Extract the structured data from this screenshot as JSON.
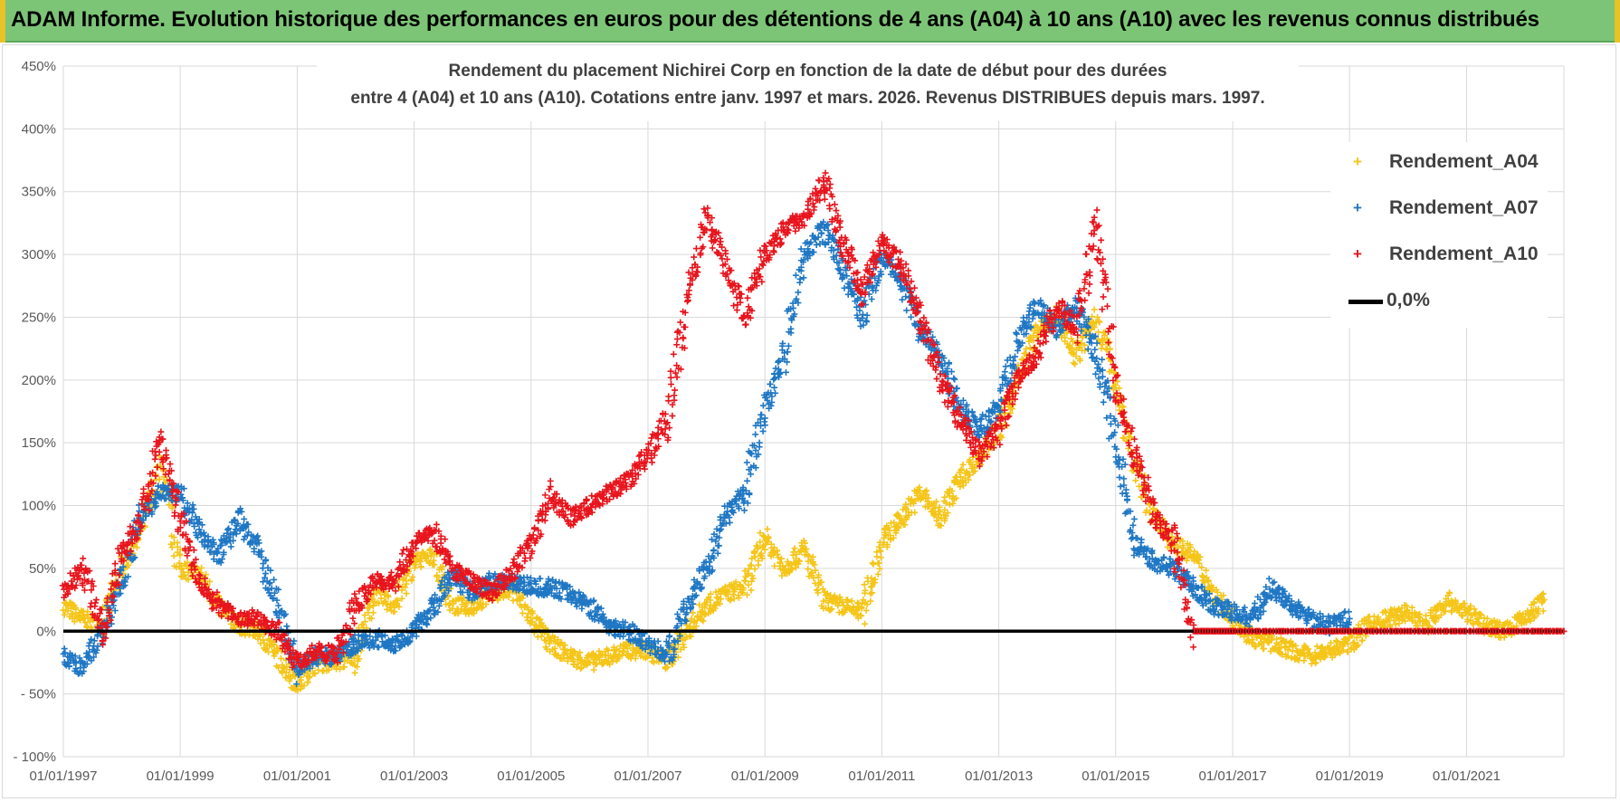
{
  "banner": {
    "title": "ADAM Informe. Evolution historique des performances en euros pour des détentions de 4 ans (A04) à 10 ans (A10) avec les revenus connus distribués"
  },
  "chart_data": {
    "type": "scatter",
    "title_line1": "Rendement du placement Nichirei Corp en fonction de la date de début pour des durées",
    "title_line2": "entre 4 (A04) et 10 ans (A10).  Cotations entre janv. 1997 et mars. 2026. Revenus DISTRIBUES depuis mars. 1997.",
    "xlim": [
      "1997-01-01",
      "2022-09-01"
    ],
    "ylim": [
      -100,
      450
    ],
    "y_ticks": [
      -100,
      -50,
      0,
      50,
      100,
      150,
      200,
      250,
      300,
      350,
      400,
      450
    ],
    "y_tick_labels": [
      "- 100%",
      "- 50%",
      "0%",
      "50%",
      "100%",
      "150%",
      "200%",
      "250%",
      "300%",
      "350%",
      "400%",
      "450%"
    ],
    "x_tick_labels": [
      "01/01/1997",
      "01/01/1999",
      "01/01/2001",
      "01/01/2003",
      "01/01/2005",
      "01/01/2007",
      "01/01/2009",
      "01/01/2011",
      "01/01/2013",
      "01/01/2015",
      "01/01/2017",
      "01/01/2019",
      "01/01/2021"
    ],
    "x_tick_dates": [
      "1997-01-01",
      "1999-01-01",
      "2001-01-01",
      "2003-01-01",
      "2005-01-01",
      "2007-01-01",
      "2009-01-01",
      "2011-01-01",
      "2013-01-01",
      "2015-01-01",
      "2017-01-01",
      "2019-01-01",
      "2021-01-01"
    ],
    "grid": true,
    "legend_position": "right",
    "series": [
      {
        "name": "Rendement_A04",
        "color": "#f5c518",
        "points": [
          [
            "1997-01-01",
            20
          ],
          [
            "1997-05-01",
            10
          ],
          [
            "1997-09-01",
            5
          ],
          [
            "1998-01-01",
            50
          ],
          [
            "1998-05-01",
            80
          ],
          [
            "1998-09-01",
            130
          ],
          [
            "1999-01-01",
            50
          ],
          [
            "1999-05-01",
            45
          ],
          [
            "1999-09-01",
            20
          ],
          [
            "2000-01-01",
            5
          ],
          [
            "2000-05-01",
            0
          ],
          [
            "2000-09-01",
            -20
          ],
          [
            "2001-01-01",
            -42
          ],
          [
            "2001-05-01",
            -25
          ],
          [
            "2001-09-01",
            -25
          ],
          [
            "2002-01-01",
            -20
          ],
          [
            "2002-05-01",
            30
          ],
          [
            "2002-09-01",
            20
          ],
          [
            "2003-01-01",
            55
          ],
          [
            "2003-05-01",
            60
          ],
          [
            "2003-09-01",
            20
          ],
          [
            "2004-01-01",
            20
          ],
          [
            "2004-05-01",
            30
          ],
          [
            "2004-09-01",
            35
          ],
          [
            "2005-01-01",
            10
          ],
          [
            "2005-05-01",
            -10
          ],
          [
            "2005-09-01",
            -20
          ],
          [
            "2006-01-01",
            -25
          ],
          [
            "2006-05-01",
            -20
          ],
          [
            "2006-09-01",
            -15
          ],
          [
            "2007-01-01",
            -15
          ],
          [
            "2007-05-01",
            -25
          ],
          [
            "2007-09-01",
            0
          ],
          [
            "2008-01-01",
            20
          ],
          [
            "2008-05-01",
            30
          ],
          [
            "2008-09-01",
            35
          ],
          [
            "2009-01-01",
            75
          ],
          [
            "2009-05-01",
            50
          ],
          [
            "2009-09-01",
            65
          ],
          [
            "2010-01-01",
            25
          ],
          [
            "2010-05-01",
            20
          ],
          [
            "2010-09-01",
            15
          ],
          [
            "2011-01-01",
            70
          ],
          [
            "2011-05-01",
            90
          ],
          [
            "2011-09-01",
            110
          ],
          [
            "2012-01-01",
            90
          ],
          [
            "2012-05-01",
            120
          ],
          [
            "2012-09-01",
            140
          ],
          [
            "2013-01-01",
            160
          ],
          [
            "2013-05-01",
            200
          ],
          [
            "2013-09-01",
            240
          ],
          [
            "2014-01-01",
            250
          ],
          [
            "2014-05-01",
            220
          ],
          [
            "2014-09-01",
            250
          ],
          [
            "2015-01-01",
            200
          ],
          [
            "2015-05-01",
            130
          ],
          [
            "2015-09-01",
            90
          ],
          [
            "2016-01-01",
            70
          ],
          [
            "2016-05-01",
            60
          ],
          [
            "2016-09-01",
            30
          ],
          [
            "2017-01-01",
            10
          ],
          [
            "2017-05-01",
            -5
          ],
          [
            "2017-09-01",
            -10
          ],
          [
            "2018-01-01",
            -15
          ],
          [
            "2018-05-01",
            -20
          ],
          [
            "2018-09-01",
            -15
          ],
          [
            "2019-01-01",
            -10
          ],
          [
            "2019-05-01",
            5
          ],
          [
            "2019-09-01",
            10
          ],
          [
            "2020-01-01",
            15
          ],
          [
            "2020-05-01",
            5
          ],
          [
            "2020-09-01",
            25
          ],
          [
            "2021-01-01",
            15
          ],
          [
            "2021-05-01",
            5
          ],
          [
            "2021-09-01",
            0
          ],
          [
            "2022-01-01",
            10
          ],
          [
            "2022-05-01",
            25
          ]
        ]
      },
      {
        "name": "Rendement_A07",
        "color": "#1f77c4",
        "points": [
          [
            "1997-01-01",
            -20
          ],
          [
            "1997-05-01",
            -30
          ],
          [
            "1997-09-01",
            0
          ],
          [
            "1998-01-01",
            40
          ],
          [
            "1998-05-01",
            90
          ],
          [
            "1998-09-01",
            110
          ],
          [
            "1999-01-01",
            110
          ],
          [
            "1999-05-01",
            80
          ],
          [
            "1999-09-01",
            60
          ],
          [
            "2000-01-01",
            90
          ],
          [
            "2000-05-01",
            65
          ],
          [
            "2000-09-01",
            20
          ],
          [
            "2001-01-01",
            -30
          ],
          [
            "2001-05-01",
            -20
          ],
          [
            "2001-09-01",
            -20
          ],
          [
            "2002-01-01",
            -10
          ],
          [
            "2002-05-01",
            -5
          ],
          [
            "2002-09-01",
            -10
          ],
          [
            "2003-01-01",
            0
          ],
          [
            "2003-05-01",
            20
          ],
          [
            "2003-09-01",
            45
          ],
          [
            "2004-01-01",
            30
          ],
          [
            "2004-05-01",
            40
          ],
          [
            "2004-09-01",
            40
          ],
          [
            "2005-01-01",
            35
          ],
          [
            "2005-05-01",
            35
          ],
          [
            "2005-09-01",
            30
          ],
          [
            "2006-01-01",
            20
          ],
          [
            "2006-05-01",
            5
          ],
          [
            "2006-09-01",
            0
          ],
          [
            "2007-01-01",
            -10
          ],
          [
            "2007-05-01",
            -20
          ],
          [
            "2007-09-01",
            20
          ],
          [
            "2008-01-01",
            50
          ],
          [
            "2008-05-01",
            90
          ],
          [
            "2008-09-01",
            110
          ],
          [
            "2009-01-01",
            180
          ],
          [
            "2009-05-01",
            220
          ],
          [
            "2009-09-01",
            300
          ],
          [
            "2010-01-01",
            320
          ],
          [
            "2010-05-01",
            290
          ],
          [
            "2010-09-01",
            250
          ],
          [
            "2011-01-01",
            300
          ],
          [
            "2011-05-01",
            280
          ],
          [
            "2011-09-01",
            240
          ],
          [
            "2012-01-01",
            220
          ],
          [
            "2012-05-01",
            180
          ],
          [
            "2012-09-01",
            160
          ],
          [
            "2013-01-01",
            180
          ],
          [
            "2013-05-01",
            230
          ],
          [
            "2013-09-01",
            260
          ],
          [
            "2014-01-01",
            240
          ],
          [
            "2014-05-01",
            260
          ],
          [
            "2014-09-01",
            220
          ],
          [
            "2015-01-01",
            150
          ],
          [
            "2015-05-01",
            70
          ],
          [
            "2015-09-01",
            55
          ],
          [
            "2016-01-01",
            50
          ],
          [
            "2016-05-01",
            35
          ],
          [
            "2016-09-01",
            20
          ],
          [
            "2017-01-01",
            15
          ],
          [
            "2017-05-01",
            10
          ],
          [
            "2017-09-01",
            35
          ],
          [
            "2018-01-01",
            20
          ],
          [
            "2018-05-01",
            10
          ],
          [
            "2018-09-01",
            5
          ],
          [
            "2019-01-01",
            10
          ]
        ]
      },
      {
        "name": "Rendement_A10",
        "color": "#e8141c",
        "points": [
          [
            "1997-01-01",
            30
          ],
          [
            "1997-05-01",
            50
          ],
          [
            "1997-09-01",
            0
          ],
          [
            "1998-01-01",
            60
          ],
          [
            "1998-05-01",
            90
          ],
          [
            "1998-09-01",
            150
          ],
          [
            "1999-01-01",
            90
          ],
          [
            "1999-05-01",
            40
          ],
          [
            "1999-09-01",
            20
          ],
          [
            "2000-01-01",
            10
          ],
          [
            "2000-05-01",
            10
          ],
          [
            "2000-09-01",
            0
          ],
          [
            "2001-01-01",
            -25
          ],
          [
            "2001-05-01",
            -15
          ],
          [
            "2001-09-01",
            -20
          ],
          [
            "2002-01-01",
            20
          ],
          [
            "2002-05-01",
            40
          ],
          [
            "2002-09-01",
            40
          ],
          [
            "2003-01-01",
            70
          ],
          [
            "2003-05-01",
            80
          ],
          [
            "2003-09-01",
            50
          ],
          [
            "2004-01-01",
            40
          ],
          [
            "2004-05-01",
            30
          ],
          [
            "2004-09-01",
            45
          ],
          [
            "2005-01-01",
            70
          ],
          [
            "2005-05-01",
            110
          ],
          [
            "2005-09-01",
            90
          ],
          [
            "2006-01-01",
            100
          ],
          [
            "2006-05-01",
            110
          ],
          [
            "2006-09-01",
            120
          ],
          [
            "2007-01-01",
            140
          ],
          [
            "2007-05-01",
            170
          ],
          [
            "2007-09-01",
            260
          ],
          [
            "2008-01-01",
            330
          ],
          [
            "2008-05-01",
            290
          ],
          [
            "2008-09-01",
            250
          ],
          [
            "2009-01-01",
            300
          ],
          [
            "2009-05-01",
            320
          ],
          [
            "2009-09-01",
            330
          ],
          [
            "2010-01-01",
            360
          ],
          [
            "2010-05-01",
            310
          ],
          [
            "2010-09-01",
            270
          ],
          [
            "2011-01-01",
            310
          ],
          [
            "2011-05-01",
            290
          ],
          [
            "2011-09-01",
            250
          ],
          [
            "2012-01-01",
            200
          ],
          [
            "2012-05-01",
            170
          ],
          [
            "2012-09-01",
            140
          ],
          [
            "2013-01-01",
            160
          ],
          [
            "2013-05-01",
            200
          ],
          [
            "2013-09-01",
            220
          ],
          [
            "2014-01-01",
            260
          ],
          [
            "2014-05-01",
            240
          ],
          [
            "2014-09-01",
            320
          ],
          [
            "2015-01-01",
            200
          ],
          [
            "2015-05-01",
            140
          ],
          [
            "2015-09-01",
            90
          ],
          [
            "2016-01-01",
            70
          ],
          [
            "2016-05-01",
            0
          ],
          [
            "2016-09-01",
            0
          ],
          [
            "2017-01-01",
            0
          ],
          [
            "2018-01-01",
            0
          ],
          [
            "2019-01-01",
            0
          ],
          [
            "2020-01-01",
            0
          ],
          [
            "2021-01-01",
            0
          ],
          [
            "2022-01-01",
            0
          ],
          [
            "2022-09-01",
            0
          ]
        ]
      }
    ],
    "reference_line": {
      "name": "0,0%",
      "value": 0,
      "color": "#000000"
    }
  },
  "legend": {
    "items": [
      {
        "label": "Rendement_A04",
        "color": "#f5c518"
      },
      {
        "label": "Rendement_A07",
        "color": "#1f77c4"
      },
      {
        "label": "Rendement_A10",
        "color": "#e8141c"
      },
      {
        "label": "0,0%",
        "color": "#000000"
      }
    ]
  }
}
